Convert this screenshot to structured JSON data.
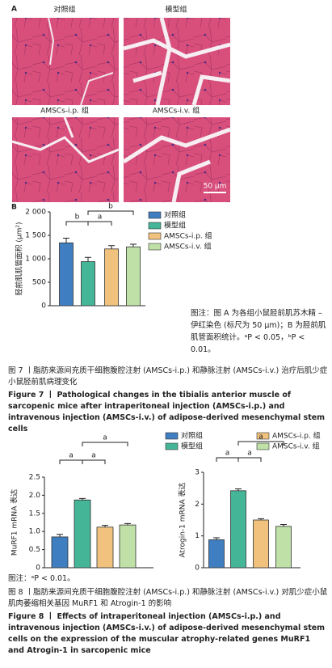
{
  "figure7": {
    "panel_a": {
      "label": "A",
      "images": [
        "对照组",
        "模型组",
        "AMSCs-i.p. 组",
        "AMSCs-i.v. 组"
      ],
      "scale_bar": "50 μm"
    },
    "panel_b_label": "B",
    "note": "图注：图 A 为各组小鼠胫前肌苏木精 – 伊红染色 (标尺为 50 μm)；B 为胫前肌肌管面积统计。ᵃP < 0.05，ᵇP < 0.01。",
    "caption_cn": "图 7 丨脂肪来源间充质干细胞腹腔注射 (AMSCs-i.p.) 和静脉注射 (AMSCs-i.v.) 治疗后肌少症小鼠胫前肌病理变化",
    "caption_en": "Figure 7 丨 Pathological changes in the tibialis anterior muscle of sarcopenic mice after intraperitoneal injection (AMSCs-i.p.) and intravenous injection (AMSCs-i.v.) of adipose-derived mesenchymal stem cells"
  },
  "figure8": {
    "note": "图注：ᵃP < 0.01。",
    "caption_cn": "图 8 丨脂肪来源间充质干细胞腹腔注射 (AMSCs-i.p.) 和静脉注射 (AMSCs-i.v.) 对肌少症小鼠肌肉萎缩相关基因 MuRF1 和 Atrogin-1 的影响",
    "caption_en": "Figure 8 丨 Effects of intraperitoneal injection (AMSCs-i.p.) and intravenous injection (AMSCs-i.v.) of adipose-derived mesenchymal stem cells on the expression of the muscular atrophy-related genes MuRF1 and Atrogin-1 in sarcopenic mice"
  },
  "chart_data": [
    {
      "type": "bar",
      "y_label": "胫前肌肌管面积 (μm²)",
      "ylim": [
        0,
        2000
      ],
      "yticks": [
        0,
        500,
        {
          "value": 1000,
          "label": "1 000"
        },
        {
          "value": 1500,
          "label": "1 500"
        },
        {
          "value": 2000,
          "label": "2 000"
        }
      ],
      "series": [
        {
          "name": "对照组",
          "color": "#3f7fc1",
          "values": [
            1340
          ],
          "errors": [
            100
          ]
        },
        {
          "name": "模型组",
          "color": "#45b597",
          "values": [
            940
          ],
          "errors": [
            90
          ]
        },
        {
          "name": "AMSCs-i.p. 组",
          "color": "#f1c27d",
          "values": [
            1210
          ],
          "errors": [
            70
          ]
        },
        {
          "name": "AMSCs-i.v. 组",
          "color": "#bfe0a6",
          "values": [
            1255
          ],
          "errors": [
            55
          ]
        }
      ],
      "annotations": [
        "b",
        "a",
        "b"
      ]
    },
    {
      "type": "bar",
      "y_label": "MuRF1 mRNA 表达",
      "ylim": [
        0,
        2.5
      ],
      "yticks": [
        0,
        0.5,
        {
          "value": 1,
          "label": "1.0"
        },
        1.5,
        {
          "value": 2,
          "label": "2.0"
        },
        2.5
      ],
      "series": [
        {
          "name": "对照组",
          "color": "#3f7fc1",
          "values": [
            0.85
          ],
          "errors": [
            0.07
          ]
        },
        {
          "name": "模型组",
          "color": "#45b597",
          "values": [
            1.87
          ],
          "errors": [
            0.04
          ]
        },
        {
          "name": "AMSCs-i.p. 组",
          "color": "#f1c27d",
          "values": [
            1.12
          ],
          "errors": [
            0.05
          ]
        },
        {
          "name": "AMSCs-i.v. 组",
          "color": "#bfe0a6",
          "values": [
            1.18
          ],
          "errors": [
            0.04
          ]
        }
      ],
      "annotations": [
        "a",
        "a",
        "a"
      ]
    },
    {
      "type": "bar",
      "y_label": "Atrogin-1 mRNA 表达",
      "ylim": [
        0,
        3
      ],
      "yticks": [
        0,
        1,
        2,
        3
      ],
      "series": [
        {
          "color": "#3f7fc1",
          "values": [
            0.88
          ],
          "errors": [
            0.06
          ]
        },
        {
          "color": "#45b597",
          "values": [
            2.42
          ],
          "errors": [
            0.06
          ]
        },
        {
          "color": "#f1c27d",
          "values": [
            1.5
          ],
          "errors": [
            0.04
          ]
        },
        {
          "color": "#bfe0a6",
          "values": [
            1.3
          ],
          "errors": [
            0.06
          ]
        }
      ],
      "annotations": [
        "a",
        "a",
        "a"
      ]
    }
  ]
}
